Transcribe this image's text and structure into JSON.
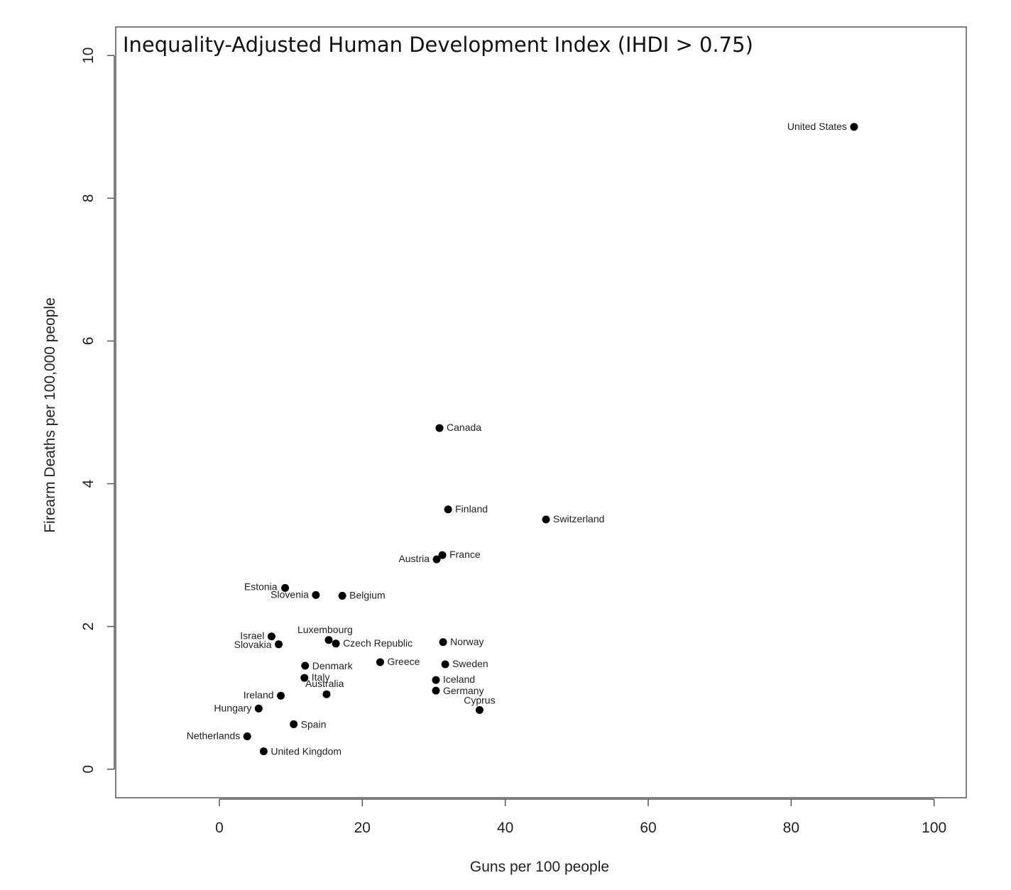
{
  "chart_data": {
    "type": "scatter",
    "title": "Inequality-Adjusted Human Development Index (IHDI > 0.75)",
    "xlabel": "Guns per 100 people",
    "ylabel": "Firearm Deaths per 100,000 people",
    "xlim": [
      -14.5,
      104.5
    ],
    "ylim": [
      -0.4,
      10.4
    ],
    "x_ticks": [
      0,
      20,
      40,
      60,
      80,
      100
    ],
    "y_ticks": [
      0,
      2,
      4,
      6,
      8,
      10
    ],
    "grid": false,
    "legend": "none",
    "marker_color": "#000000",
    "points": [
      {
        "label": "United States",
        "x": 88.8,
        "y": 9.0
      },
      {
        "label": "Canada",
        "x": 30.8,
        "y": 4.78
      },
      {
        "label": "Finland",
        "x": 32.0,
        "y": 3.64
      },
      {
        "label": "Switzerland",
        "x": 45.7,
        "y": 3.5
      },
      {
        "label": "France",
        "x": 31.2,
        "y": 3.0
      },
      {
        "label": "Austria",
        "x": 30.4,
        "y": 2.94
      },
      {
        "label": "Estonia",
        "x": 9.2,
        "y": 2.54
      },
      {
        "label": "Slovenia",
        "x": 13.5,
        "y": 2.44
      },
      {
        "label": "Belgium",
        "x": 17.2,
        "y": 2.43
      },
      {
        "label": "Israel",
        "x": 7.3,
        "y": 1.86
      },
      {
        "label": "Slovakia",
        "x": 8.3,
        "y": 1.75
      },
      {
        "label": "Luxembourg",
        "x": 15.3,
        "y": 1.81
      },
      {
        "label": "Czech Republic",
        "x": 16.3,
        "y": 1.76
      },
      {
        "label": "Norway",
        "x": 31.3,
        "y": 1.78
      },
      {
        "label": "Denmark",
        "x": 12.0,
        "y": 1.45
      },
      {
        "label": "Greece",
        "x": 22.5,
        "y": 1.5
      },
      {
        "label": "Sweden",
        "x": 31.6,
        "y": 1.47
      },
      {
        "label": "Italy",
        "x": 11.9,
        "y": 1.28
      },
      {
        "label": "Australia",
        "x": 15.0,
        "y": 1.05
      },
      {
        "label": "Iceland",
        "x": 30.3,
        "y": 1.25
      },
      {
        "label": "Germany",
        "x": 30.3,
        "y": 1.1
      },
      {
        "label": "Ireland",
        "x": 8.6,
        "y": 1.03
      },
      {
        "label": "Cyprus",
        "x": 36.4,
        "y": 0.83
      },
      {
        "label": "Hungary",
        "x": 5.5,
        "y": 0.85
      },
      {
        "label": "Spain",
        "x": 10.4,
        "y": 0.63
      },
      {
        "label": "Netherlands",
        "x": 3.9,
        "y": 0.46
      },
      {
        "label": "United Kingdom",
        "x": 6.2,
        "y": 0.25
      }
    ]
  }
}
